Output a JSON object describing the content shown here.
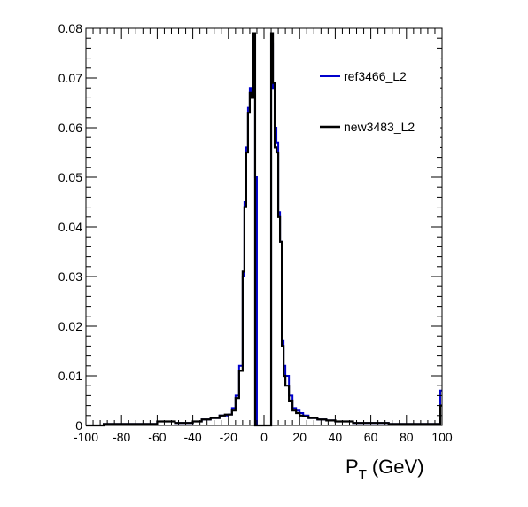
{
  "chart_data": {
    "type": "line",
    "style": "step-histogram",
    "xlabel": "P_T (GeV)",
    "xlabel_main": "P",
    "xlabel_sub": "T",
    "xlabel_unit": "(GeV)",
    "xlim": [
      -100,
      100
    ],
    "ylim": [
      0,
      0.08
    ],
    "x_ticks": [
      "-100",
      "-80",
      "-60",
      "-40",
      "-20",
      "0",
      "20",
      "40",
      "60",
      "80",
      "100"
    ],
    "y_ticks": [
      "0",
      "0.01",
      "0.02",
      "0.03",
      "0.04",
      "0.05",
      "0.06",
      "0.07",
      "0.08"
    ],
    "grid": false,
    "legend_position": "top-right",
    "series": [
      {
        "name": "ref3466_L2",
        "color": "#0000cc",
        "x": [
          -100,
          -90,
          -80,
          -70,
          -60,
          -50,
          -40,
          -35,
          -30,
          -25,
          -22,
          -20,
          -18,
          -16,
          -14,
          -12,
          -11,
          -10,
          -9,
          -8,
          -7,
          -6,
          -5,
          -4,
          -3,
          -2,
          -1,
          0,
          1,
          2,
          3,
          4,
          5,
          6,
          7,
          8,
          9,
          10,
          11,
          12,
          14,
          16,
          18,
          20,
          22,
          25,
          30,
          35,
          40,
          50,
          60,
          70,
          80,
          90,
          99
        ],
        "y": [
          0,
          0.0003,
          0.0003,
          0.0003,
          0.0008,
          0.0005,
          0.0008,
          0.0012,
          0.0015,
          0.002,
          0.002,
          0.0022,
          0.0035,
          0.006,
          0.012,
          0.03,
          0.045,
          0.056,
          0.064,
          0.068,
          0.066,
          0.077,
          0.05,
          0.0,
          0.0,
          0.0,
          0.0,
          0.0,
          0.0,
          0.0,
          0.0,
          0.077,
          0.068,
          0.06,
          0.057,
          0.043,
          0.037,
          0.017,
          0.012,
          0.01,
          0.006,
          0.0035,
          0.003,
          0.0025,
          0.002,
          0.0015,
          0.0012,
          0.001,
          0.0008,
          0.0005,
          0.0005,
          0.0003,
          0.0003,
          0.0003,
          0.007
        ]
      },
      {
        "name": "new3483_L2",
        "color": "#000000",
        "x": [
          -100,
          -90,
          -80,
          -70,
          -60,
          -50,
          -40,
          -35,
          -30,
          -25,
          -22,
          -20,
          -18,
          -16,
          -14,
          -12,
          -11,
          -10,
          -9,
          -8,
          -7,
          -6,
          -5,
          -4,
          -3,
          -2,
          -1,
          0,
          1,
          2,
          3,
          4,
          5,
          6,
          7,
          8,
          9,
          10,
          11,
          12,
          14,
          16,
          18,
          20,
          22,
          25,
          30,
          35,
          40,
          50,
          60,
          70,
          80,
          90,
          99
        ],
        "y": [
          0,
          0.0003,
          0.0003,
          0.0003,
          0.0008,
          0.0005,
          0.0008,
          0.0012,
          0.0015,
          0.002,
          0.0022,
          0.0022,
          0.003,
          0.0055,
          0.011,
          0.031,
          0.044,
          0.055,
          0.063,
          0.067,
          0.066,
          0.079,
          0.0,
          0.0,
          0.0,
          0.0,
          0.0,
          0.0,
          0.0,
          0.0,
          0.0,
          0.079,
          0.069,
          0.056,
          0.055,
          0.042,
          0.037,
          0.016,
          0.01,
          0.008,
          0.005,
          0.003,
          0.0025,
          0.002,
          0.0018,
          0.0015,
          0.0012,
          0.001,
          0.0008,
          0.0005,
          0.0005,
          0.0003,
          0.0003,
          0.0003,
          0.004
        ]
      }
    ]
  }
}
